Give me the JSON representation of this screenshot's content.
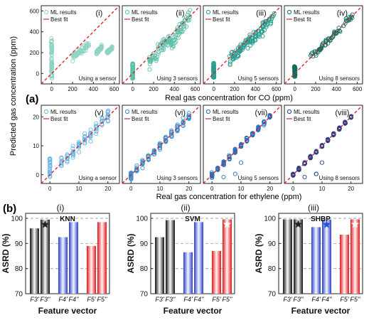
{
  "figure": {
    "label_a": "(a)",
    "label_b": "(b)",
    "shared_ylabel_a": "Predicted gas concentration (ppm)",
    "xlabel_row1": "Real gas concentration for CO (ppm)",
    "xlabel_row2": "Real gas concentration for ethylene (ppm)"
  },
  "chart_data": [
    {
      "type": "scatter",
      "panel": "(i)",
      "gas": "CO",
      "xlim": [
        -100,
        650
      ],
      "ylim": [
        -100,
        650
      ],
      "xticks": [
        0,
        200,
        400,
        600
      ],
      "yticks": [
        0,
        200,
        400,
        600
      ],
      "series": [
        {
          "name": "ML results",
          "marker": "open-circle",
          "color": "#8fd3c3",
          "clusters": [
            {
              "x": 0,
              "y_range": [
                -60,
                340
              ]
            },
            {
              "x_range": [
                200,
                360
              ],
              "y_range": [
                150,
                280
              ]
            },
            {
              "x_range": [
                430,
                480
              ],
              "y_range": [
                190,
                260
              ]
            },
            {
              "x_range": [
                530,
                580
              ],
              "y_range": [
                200,
                250
              ]
            }
          ]
        },
        {
          "name": "Best fit",
          "style": "dashed-line",
          "color": "#d62728",
          "x": [
            -100,
            650
          ],
          "y": [
            -100,
            650
          ]
        }
      ],
      "note": "Using a sensor"
    },
    {
      "type": "scatter",
      "panel": "(ii)",
      "gas": "CO",
      "xlim": [
        -100,
        650
      ],
      "ylim": [
        -100,
        650
      ],
      "xticks": [
        0,
        200,
        400,
        600
      ],
      "series": [
        {
          "name": "ML results",
          "marker": "open-circle",
          "color": "#5fbfaa",
          "clusters": [
            {
              "x": 0,
              "y_range": [
                -50,
                100
              ]
            },
            {
              "x_range": [
                150,
                360
              ],
              "y_range": [
                100,
                350
              ]
            },
            {
              "x_range": [
                360,
                550
              ],
              "y_range": [
                280,
                560
              ]
            }
          ]
        },
        {
          "name": "Best fit",
          "style": "dashed-line",
          "color": "#d62728",
          "x": [
            -100,
            650
          ],
          "y": [
            -100,
            650
          ]
        }
      ],
      "note": "Using 3 sensors"
    },
    {
      "type": "scatter",
      "panel": "(iii)",
      "gas": "CO",
      "xlim": [
        -100,
        650
      ],
      "ylim": [
        -100,
        650
      ],
      "xticks": [
        0,
        200,
        400,
        600
      ],
      "series": [
        {
          "name": "ML results",
          "marker": "open-circle",
          "color": "#2a9d8f",
          "clusters": [
            {
              "x": 0,
              "y_range": [
                -40,
                100
              ]
            },
            {
              "x_range": [
                150,
                350
              ],
              "y_range": [
                120,
                330
              ]
            },
            {
              "x_range": [
                350,
                580
              ],
              "y_range": [
                300,
                560
              ]
            }
          ]
        },
        {
          "name": "Best fit",
          "style": "dashed-line",
          "color": "#d62728",
          "x": [
            -100,
            650
          ],
          "y": [
            -100,
            650
          ]
        }
      ],
      "note": "Using 5 sensors"
    },
    {
      "type": "scatter",
      "panel": "(iv)",
      "gas": "CO",
      "xlim": [
        -100,
        650
      ],
      "ylim": [
        -100,
        650
      ],
      "xticks": [
        0,
        200,
        400,
        600
      ],
      "series": [
        {
          "name": "ML results",
          "marker": "open-circle",
          "color": "#0f6e5f",
          "clusters": [
            {
              "x": 0,
              "y_range": [
                -30,
                70
              ]
            },
            {
              "x_range": [
                150,
                560
              ],
              "y_range": "y≈x ±50"
            }
          ]
        },
        {
          "name": "Best fit",
          "style": "dashed-line",
          "color": "#d62728",
          "x": [
            -100,
            650
          ],
          "y": [
            -100,
            650
          ]
        }
      ],
      "note": "Using 8 sensors"
    },
    {
      "type": "scatter",
      "panel": "(v)",
      "gas": "ethylene",
      "xlim": [
        -3,
        24
      ],
      "ylim": [
        -3,
        24
      ],
      "xticks": [
        0,
        10,
        20
      ],
      "yticks": [
        0,
        10,
        20
      ],
      "series": [
        {
          "name": "ML results",
          "marker": "open-circle",
          "color": "#6fb7e6",
          "x_levels": [
            0,
            4,
            6,
            8,
            10,
            12,
            14,
            16,
            18,
            20
          ],
          "clusters": [
            {
              "x": 0,
              "y_range": [
                -1,
                6
              ]
            }
          ]
        },
        {
          "name": "Best fit",
          "style": "dashed-line",
          "color": "#d62728",
          "x": [
            -3,
            24
          ],
          "y": [
            -3,
            24
          ]
        }
      ],
      "note": "Using a sensor"
    },
    {
      "type": "scatter",
      "panel": "(vi)",
      "gas": "ethylene",
      "xlim": [
        -3,
        24
      ],
      "ylim": [
        -3,
        24
      ],
      "xticks": [
        0,
        10,
        20
      ],
      "series": [
        {
          "name": "ML results",
          "marker": "open-circle",
          "color": "#3f8fd0",
          "x_levels": [
            0,
            2,
            4,
            6,
            8,
            10,
            12,
            14,
            16,
            18,
            20
          ]
        },
        {
          "name": "Best fit",
          "style": "dashed-line",
          "color": "#d62728",
          "x": [
            -3,
            24
          ],
          "y": [
            -3,
            24
          ]
        }
      ],
      "note": "Using 3 sensors"
    },
    {
      "type": "scatter",
      "panel": "(vii)",
      "gas": "ethylene",
      "xlim": [
        -3,
        24
      ],
      "ylim": [
        -3,
        24
      ],
      "xticks": [
        0,
        10,
        20
      ],
      "series": [
        {
          "name": "ML results",
          "marker": "open-circle",
          "color": "#2a6fc0",
          "x_levels": [
            0,
            2,
            4,
            6,
            8,
            10,
            12,
            14,
            16,
            18,
            20
          ]
        },
        {
          "name": "Best fit",
          "style": "dashed-line",
          "color": "#d62728",
          "x": [
            -3,
            24
          ],
          "y": [
            -3,
            24
          ]
        }
      ],
      "note": "Using 5 sensors"
    },
    {
      "type": "scatter",
      "panel": "(viii)",
      "gas": "ethylene",
      "xlim": [
        -3,
        24
      ],
      "ylim": [
        -3,
        24
      ],
      "xticks": [
        0,
        10,
        20
      ],
      "series": [
        {
          "name": "ML results",
          "marker": "open-circle",
          "color": "#1f3f8f",
          "x_levels": [
            0,
            2,
            4,
            6,
            8,
            10,
            12,
            14,
            16,
            18,
            20
          ]
        },
        {
          "name": "Best fit",
          "style": "dashed-line",
          "color": "#d62728",
          "x": [
            -3,
            24
          ],
          "y": [
            -3,
            24
          ]
        }
      ],
      "note": "Using 8 sensors"
    },
    {
      "type": "bar",
      "panel": "(i)",
      "title": "KNN",
      "ylabel": "ASRD (%)",
      "xlabel": "Feature vector",
      "ylim": [
        70,
        102
      ],
      "yticks": [
        70,
        80,
        90,
        100
      ],
      "categories": [
        "F3'",
        "F3''",
        "F4'",
        "F4''",
        "F5'",
        "F5''"
      ],
      "values": [
        96,
        99.5,
        92.5,
        98.5,
        89,
        98.5
      ],
      "star_on": "F3''",
      "star_color": "#222222"
    },
    {
      "type": "bar",
      "panel": "(ii)",
      "title": "SVM",
      "ylabel": "ASRD (%)",
      "xlabel": "Feature vector",
      "ylim": [
        70,
        102
      ],
      "yticks": [
        70,
        80,
        90,
        100
      ],
      "categories": [
        "F3'",
        "F3''",
        "F4'",
        "F4''",
        "F5'",
        "F5''"
      ],
      "values": [
        92.5,
        99.3,
        86.5,
        98.5,
        87,
        99.6
      ],
      "star_on": "F5''",
      "star_color": "#ffffff"
    },
    {
      "type": "bar",
      "panel": "(iii)",
      "title": "SHBP",
      "ylabel": "ASRD (%)",
      "xlabel": "Feature vector",
      "ylim": [
        70,
        102
      ],
      "yticks": [
        70,
        80,
        90,
        100
      ],
      "categories": [
        "F3'",
        "F3''",
        "F4'",
        "F4''",
        "F5'",
        "F5''"
      ],
      "values": [
        99.6,
        99.6,
        96.5,
        99.5,
        93.5,
        99.6
      ],
      "stars_on": [
        "F3''",
        "F4''",
        "F5''"
      ],
      "star_colors": [
        "#222222",
        "#2255dd",
        "#ffffff"
      ]
    }
  ]
}
